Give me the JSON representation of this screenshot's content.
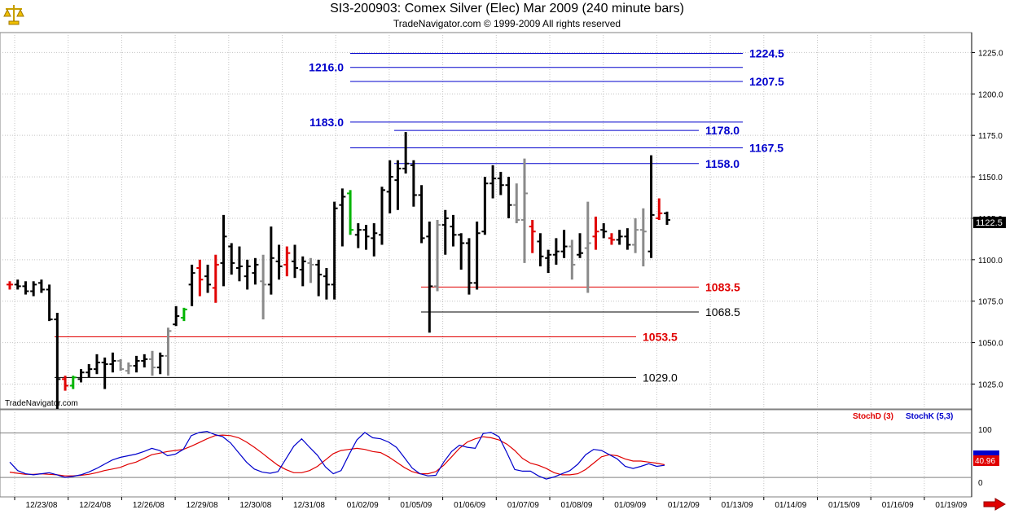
{
  "title": "SI3-200903:  Comex Silver (Elec) Mar 2009  (240 minute bars)",
  "copyright": "TradeNavigator.com © 1999-2009 All rights reserved",
  "watermark": "TradeNavigator.com",
  "colors": {
    "black": "#000000",
    "red": "#e00000",
    "gray": "#8a8a8a",
    "green": "#00b400",
    "blue_level": "#0000cc",
    "grid": "#c4c4c4",
    "stoch_d": "#e00000",
    "stoch_k": "#0000cc"
  },
  "icons": {
    "logo": "scale-icon",
    "scroll": "right-arrow-icon"
  },
  "chart_data": [
    {
      "type": "ohlc",
      "title": "SI3-200903:  Comex Silver (Elec) Mar 2009  (240 minute bars)",
      "ylim": [
        1010,
        1237
      ],
      "yticks": [
        "1025.0",
        "1050.0",
        "1075.0",
        "1100.0",
        "1125.0",
        "1150.0",
        "1175.0",
        "1200.0",
        "1225.0"
      ],
      "last_price": "1122.5",
      "grid": true,
      "x_tick_labels": [
        "12/23/08",
        "12/24/08",
        "12/26/08",
        "12/29/08",
        "12/30/08",
        "12/31/08",
        "01/02/09",
        "01/05/09",
        "01/06/09",
        "01/07/09",
        "01/08/09",
        "01/09/09",
        "01/12/09",
        "01/13/09",
        "01/14/09",
        "01/15/09",
        "01/16/09",
        "01/19/09"
      ],
      "bars_ohlc": [
        [
          1085,
          1087,
          1082,
          1085
        ],
        [
          1085,
          1088,
          1082,
          1084
        ],
        [
          1084,
          1087,
          1079,
          1081
        ],
        [
          1081,
          1087,
          1078,
          1085
        ],
        [
          1086,
          1088,
          1080,
          1082
        ],
        [
          1082,
          1085,
          1063,
          1064
        ],
        [
          1064,
          1068,
          1010,
          1028
        ],
        [
          1028,
          1030,
          1021,
          1024
        ],
        [
          1024,
          1030,
          1022,
          1029
        ],
        [
          1028,
          1034,
          1026,
          1032
        ],
        [
          1032,
          1037,
          1029,
          1034
        ],
        [
          1034,
          1043,
          1031,
          1038
        ],
        [
          1038,
          1041,
          1022,
          1037
        ],
        [
          1037,
          1044,
          1032,
          1039
        ],
        [
          1039,
          1040,
          1033,
          1034
        ],
        [
          1033,
          1038,
          1031,
          1036
        ],
        [
          1036,
          1042,
          1032,
          1039
        ],
        [
          1039,
          1043,
          1035,
          1040
        ],
        [
          1040,
          1045,
          1030,
          1035
        ],
        [
          1035,
          1044,
          1031,
          1042
        ],
        [
          1042,
          1059,
          1030,
          1057
        ],
        [
          1061,
          1072,
          1060,
          1066
        ],
        [
          1065,
          1071,
          1063,
          1070
        ],
        [
          1085,
          1097,
          1072,
          1092
        ],
        [
          1095,
          1100,
          1078,
          1088
        ],
        [
          1090,
          1097,
          1080,
          1085
        ],
        [
          1083,
          1103,
          1074,
          1097
        ],
        [
          1098,
          1127,
          1084,
          1114
        ],
        [
          1108,
          1110,
          1091,
          1098
        ],
        [
          1095,
          1108,
          1087,
          1096
        ],
        [
          1090,
          1100,
          1082,
          1096
        ],
        [
          1092,
          1101,
          1085,
          1097
        ],
        [
          1087,
          1103,
          1064,
          1085
        ],
        [
          1085,
          1120,
          1079,
          1101
        ],
        [
          1099,
          1109,
          1088,
          1096
        ],
        [
          1097,
          1108,
          1090,
          1104
        ],
        [
          1099,
          1109,
          1089,
          1095
        ],
        [
          1094,
          1102,
          1084,
          1099
        ],
        [
          1098,
          1101,
          1086,
          1097
        ],
        [
          1097,
          1100,
          1078,
          1091
        ],
        [
          1090,
          1095,
          1076,
          1085
        ],
        [
          1085,
          1135,
          1076,
          1131
        ],
        [
          1133,
          1143,
          1108,
          1138
        ],
        [
          1140,
          1142,
          1115,
          1118
        ],
        [
          1115,
          1122,
          1107,
          1118
        ],
        [
          1118,
          1121,
          1106,
          1114
        ],
        [
          1113,
          1122,
          1102,
          1116
        ],
        [
          1115,
          1144,
          1109,
          1142
        ],
        [
          1141,
          1160,
          1128,
          1150
        ],
        [
          1148,
          1160,
          1130,
          1155
        ],
        [
          1155,
          1177,
          1152,
          1158
        ],
        [
          1157,
          1160,
          1132,
          1139
        ],
        [
          1139,
          1145,
          1110,
          1113
        ],
        [
          1114,
          1123,
          1056,
          1084
        ],
        [
          1084,
          1124,
          1081,
          1121
        ],
        [
          1121,
          1130,
          1103,
          1125
        ],
        [
          1120,
          1127,
          1108,
          1115
        ],
        [
          1115,
          1116,
          1094,
          1110
        ],
        [
          1110,
          1113,
          1079,
          1086
        ],
        [
          1086,
          1123,
          1082,
          1116
        ],
        [
          1117,
          1150,
          1115,
          1146
        ],
        [
          1146,
          1157,
          1137,
          1149
        ],
        [
          1149,
          1153,
          1139,
          1145
        ],
        [
          1145,
          1150,
          1125,
          1133
        ],
        [
          1133,
          1146,
          1122,
          1124
        ],
        [
          1124,
          1161,
          1098,
          1140
        ],
        [
          1120,
          1124,
          1104,
          1117
        ],
        [
          1111,
          1116,
          1096,
          1102
        ],
        [
          1101,
          1106,
          1092,
          1103
        ],
        [
          1103,
          1113,
          1097,
          1105
        ],
        [
          1105,
          1118,
          1101,
          1108
        ],
        [
          1108,
          1112,
          1088,
          1097
        ],
        [
          1103,
          1116,
          1101,
          1104
        ],
        [
          1107,
          1135,
          1080,
          1110
        ],
        [
          1114,
          1126,
          1106,
          1117
        ],
        [
          1118,
          1122,
          1113,
          1117
        ],
        [
          1113,
          1116,
          1109,
          1112
        ],
        [
          1112,
          1118,
          1109,
          1114
        ],
        [
          1114,
          1119,
          1106,
          1109
        ],
        [
          1109,
          1125,
          1104,
          1118
        ],
        [
          1118,
          1131,
          1096,
          1117
        ],
        [
          1105,
          1163,
          1101,
          1127
        ],
        [
          1125,
          1137,
          1124,
          1128
        ],
        [
          1128,
          1129,
          1121,
          1124
        ]
      ],
      "bar_colors": [
        "red",
        "black",
        "black",
        "black",
        "black",
        "black",
        "black",
        "red",
        "green",
        "black",
        "black",
        "black",
        "black",
        "black",
        "gray",
        "gray",
        "black",
        "black",
        "gray",
        "black",
        "gray",
        "black",
        "green",
        "black",
        "red",
        "black",
        "red",
        "black",
        "black",
        "black",
        "black",
        "black",
        "gray",
        "black",
        "black",
        "red",
        "black",
        "black",
        "gray",
        "black",
        "black",
        "black",
        "black",
        "green",
        "black",
        "black",
        "black",
        "black",
        "black",
        "black",
        "black",
        "black",
        "black",
        "black",
        "gray",
        "black",
        "black",
        "black",
        "black",
        "black",
        "black",
        "black",
        "black",
        "black",
        "gray",
        "gray",
        "red",
        "black",
        "black",
        "black",
        "black",
        "gray",
        "black",
        "gray",
        "red",
        "black",
        "red",
        "black",
        "black",
        "gray",
        "gray",
        "black",
        "red",
        "black"
      ],
      "levels": [
        {
          "label": "1224.5",
          "value": 1224.5,
          "color": "blue",
          "label_side": "right"
        },
        {
          "label": "1216.0",
          "value": 1216.0,
          "color": "blue",
          "label_side": "left"
        },
        {
          "label": "1207.5",
          "value": 1207.5,
          "color": "blue",
          "label_side": "right"
        },
        {
          "label": "1183.0",
          "value": 1183.0,
          "color": "blue",
          "label_side": "left"
        },
        {
          "label": "1178.0",
          "value": 1178.0,
          "color": "blue",
          "label_side": "right"
        },
        {
          "label": "1167.5",
          "value": 1167.5,
          "color": "blue",
          "label_side": "right"
        },
        {
          "label": "1158.0",
          "value": 1158.0,
          "color": "blue",
          "label_side": "right"
        },
        {
          "label": "1083.5",
          "value": 1083.5,
          "color": "red",
          "label_side": "right"
        },
        {
          "label": "1068.5",
          "value": 1068.5,
          "color": "black",
          "label_side": "right"
        },
        {
          "label": "1053.5",
          "value": 1053.5,
          "color": "red",
          "label_side": "right"
        },
        {
          "label": "1029.0",
          "value": 1029.0,
          "color": "black",
          "label_side": "right"
        }
      ]
    },
    {
      "type": "line",
      "ylim": [
        0,
        100
      ],
      "yticks": [
        "100",
        "0"
      ],
      "reference_lines": [
        93,
        9
      ],
      "series": [
        {
          "name": "StochD (3)",
          "color": "red",
          "values": [
            19,
            17,
            15,
            15,
            16,
            15,
            14,
            12,
            12,
            13,
            15,
            18,
            22,
            25,
            28,
            34,
            38,
            45,
            52,
            55,
            58,
            60,
            62,
            68,
            75,
            82,
            88,
            89,
            88,
            84,
            76,
            66,
            55,
            43,
            32,
            24,
            18,
            18,
            22,
            30,
            42,
            54,
            60,
            62,
            64,
            62,
            58,
            56,
            48,
            38,
            28,
            20,
            16,
            16,
            20,
            32,
            48,
            64,
            76,
            82,
            86,
            84,
            80,
            72,
            60,
            45,
            36,
            32,
            26,
            18,
            14,
            14,
            16,
            24,
            36,
            48,
            52,
            50,
            44,
            40,
            40,
            38,
            36,
            33
          ]
        },
        {
          "name": "StochK (5,3)",
          "color": "blue",
          "values": [
            38,
            22,
            16,
            14,
            16,
            18,
            14,
            9,
            11,
            14,
            19,
            26,
            34,
            42,
            47,
            50,
            53,
            58,
            64,
            60,
            50,
            53,
            62,
            88,
            94,
            96,
            90,
            86,
            74,
            56,
            38,
            25,
            19,
            17,
            20,
            44,
            68,
            82,
            66,
            51,
            29,
            16,
            22,
            52,
            80,
            94,
            84,
            82,
            76,
            66,
            47,
            27,
            16,
            12,
            13,
            38,
            58,
            70,
            66,
            64,
            92,
            94,
            86,
            56,
            24,
            21,
            21,
            12,
            6,
            10,
            16,
            22,
            34,
            52,
            62,
            60,
            52,
            44,
            30,
            26,
            30,
            35,
            30,
            32
          ]
        }
      ]
    }
  ],
  "legend": {
    "stoch_d": "StochD (3)",
    "stoch_k": "StochK (5,3)"
  },
  "stoch_readout": "40.96"
}
